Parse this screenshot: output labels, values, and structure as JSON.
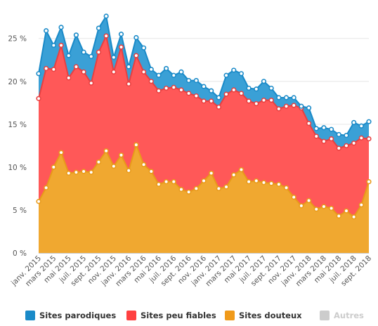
{
  "chart_data": {
    "type": "area",
    "stacked": true,
    "x": [
      "janv. 2015",
      "févr. 2015",
      "mars 2015",
      "avr. 2015",
      "mai 2015",
      "juin 2015",
      "juil. 2015",
      "août 2015",
      "sept. 2015",
      "oct. 2015",
      "nov. 2015",
      "déc. 2015",
      "janv. 2016",
      "févr. 2016",
      "mars 2016",
      "avr. 2016",
      "mai 2016",
      "juin 2016",
      "juil. 2016",
      "août 2016",
      "sept. 2016",
      "oct. 2016",
      "nov. 2016",
      "déc. 2016",
      "janv. 2017",
      "févr. 2017",
      "mars 2017",
      "avr. 2017",
      "mai 2017",
      "juin 2017",
      "juil. 2017",
      "août 2017",
      "sept. 2017",
      "oct. 2017",
      "nov. 2017",
      "déc. 2017",
      "janv. 2018",
      "févr. 2018",
      "mars 2018",
      "avr. 2018",
      "mai 2018",
      "juin 2018",
      "juil. 2018",
      "août 2018",
      "sept. 2018"
    ],
    "x_tick_labels": [
      "janv. 2015",
      "mars 2015",
      "mai 2015",
      "juil. 2015",
      "sept. 2015",
      "nov. 2015",
      "janv. 2016",
      "mars 2016",
      "mai 2016",
      "juil. 2016",
      "sept. 2016",
      "nov. 2016",
      "janv. 2017",
      "mars 2017",
      "mai 2017",
      "juil. 2017",
      "sept. 2017",
      "nov. 2017",
      "janv. 2018",
      "mars 2018",
      "mai 2018",
      "juil. 2018",
      "sept. 2018"
    ],
    "y_tick_labels": [
      "0 %",
      "5 %",
      "10 %",
      "15 %",
      "20 %",
      "25 %"
    ],
    "ylim": [
      0,
      28.5
    ],
    "y_ticks": [
      0,
      5,
      10,
      15,
      20,
      25
    ],
    "grid": true,
    "legend_position": "bottom",
    "series": [
      {
        "name": "Sites douteux",
        "color": "#f0a830",
        "stroke": "#e89a1a",
        "values": [
          6.0,
          7.6,
          10.0,
          11.7,
          9.3,
          9.4,
          9.5,
          9.4,
          10.6,
          11.9,
          10.1,
          11.4,
          9.6,
          12.6,
          10.3,
          9.5,
          8.0,
          8.3,
          8.3,
          7.4,
          7.1,
          7.5,
          8.4,
          9.3,
          7.5,
          7.7,
          9.1,
          9.7,
          8.3,
          8.4,
          8.2,
          8.1,
          8.0,
          7.6,
          6.5,
          5.5,
          6.1,
          5.1,
          5.4,
          5.2,
          4.3,
          4.9,
          4.2,
          5.6,
          8.3
        ]
      },
      {
        "name": "Sites peu fiables",
        "color": "#ff5858",
        "stroke": "#e84040",
        "values": [
          12.0,
          13.9,
          11.4,
          12.5,
          11.1,
          12.3,
          11.6,
          10.4,
          12.8,
          13.4,
          11.0,
          12.6,
          10.1,
          10.4,
          10.8,
          10.5,
          10.9,
          10.9,
          11.0,
          11.6,
          11.5,
          10.8,
          9.3,
          8.4,
          9.5,
          10.8,
          9.9,
          8.9,
          9.4,
          9.0,
          9.6,
          9.7,
          8.8,
          9.5,
          10.7,
          11.4,
          9.0,
          8.5,
          7.6,
          8.1,
          7.9,
          7.6,
          8.6,
          7.8,
          5.0
        ]
      },
      {
        "name": "Sites parodiques",
        "color": "#3aa0d6",
        "stroke": "#1a8ac8",
        "values": [
          2.9,
          4.4,
          2.8,
          2.1,
          2.6,
          3.7,
          2.3,
          3.1,
          2.8,
          2.3,
          1.7,
          1.5,
          2.0,
          2.1,
          2.8,
          1.4,
          1.8,
          2.3,
          1.4,
          2.1,
          1.5,
          1.8,
          1.7,
          1.2,
          1.1,
          2.2,
          2.3,
          2.3,
          1.5,
          1.7,
          2.2,
          1.4,
          1.3,
          1.0,
          0.9,
          0.2,
          1.8,
          0.9,
          1.6,
          1.1,
          1.6,
          1.2,
          2.4,
          1.4,
          2.0
        ]
      }
    ],
    "legend": [
      {
        "name": "Sites parodiques",
        "color": "#1a8ac8",
        "enabled": true
      },
      {
        "name": "Sites peu fiables",
        "color": "#ff4040",
        "enabled": true
      },
      {
        "name": "Sites douteux",
        "color": "#f09a1a",
        "enabled": true
      },
      {
        "name": "Autres",
        "color": "#cccccc",
        "enabled": false
      }
    ]
  }
}
